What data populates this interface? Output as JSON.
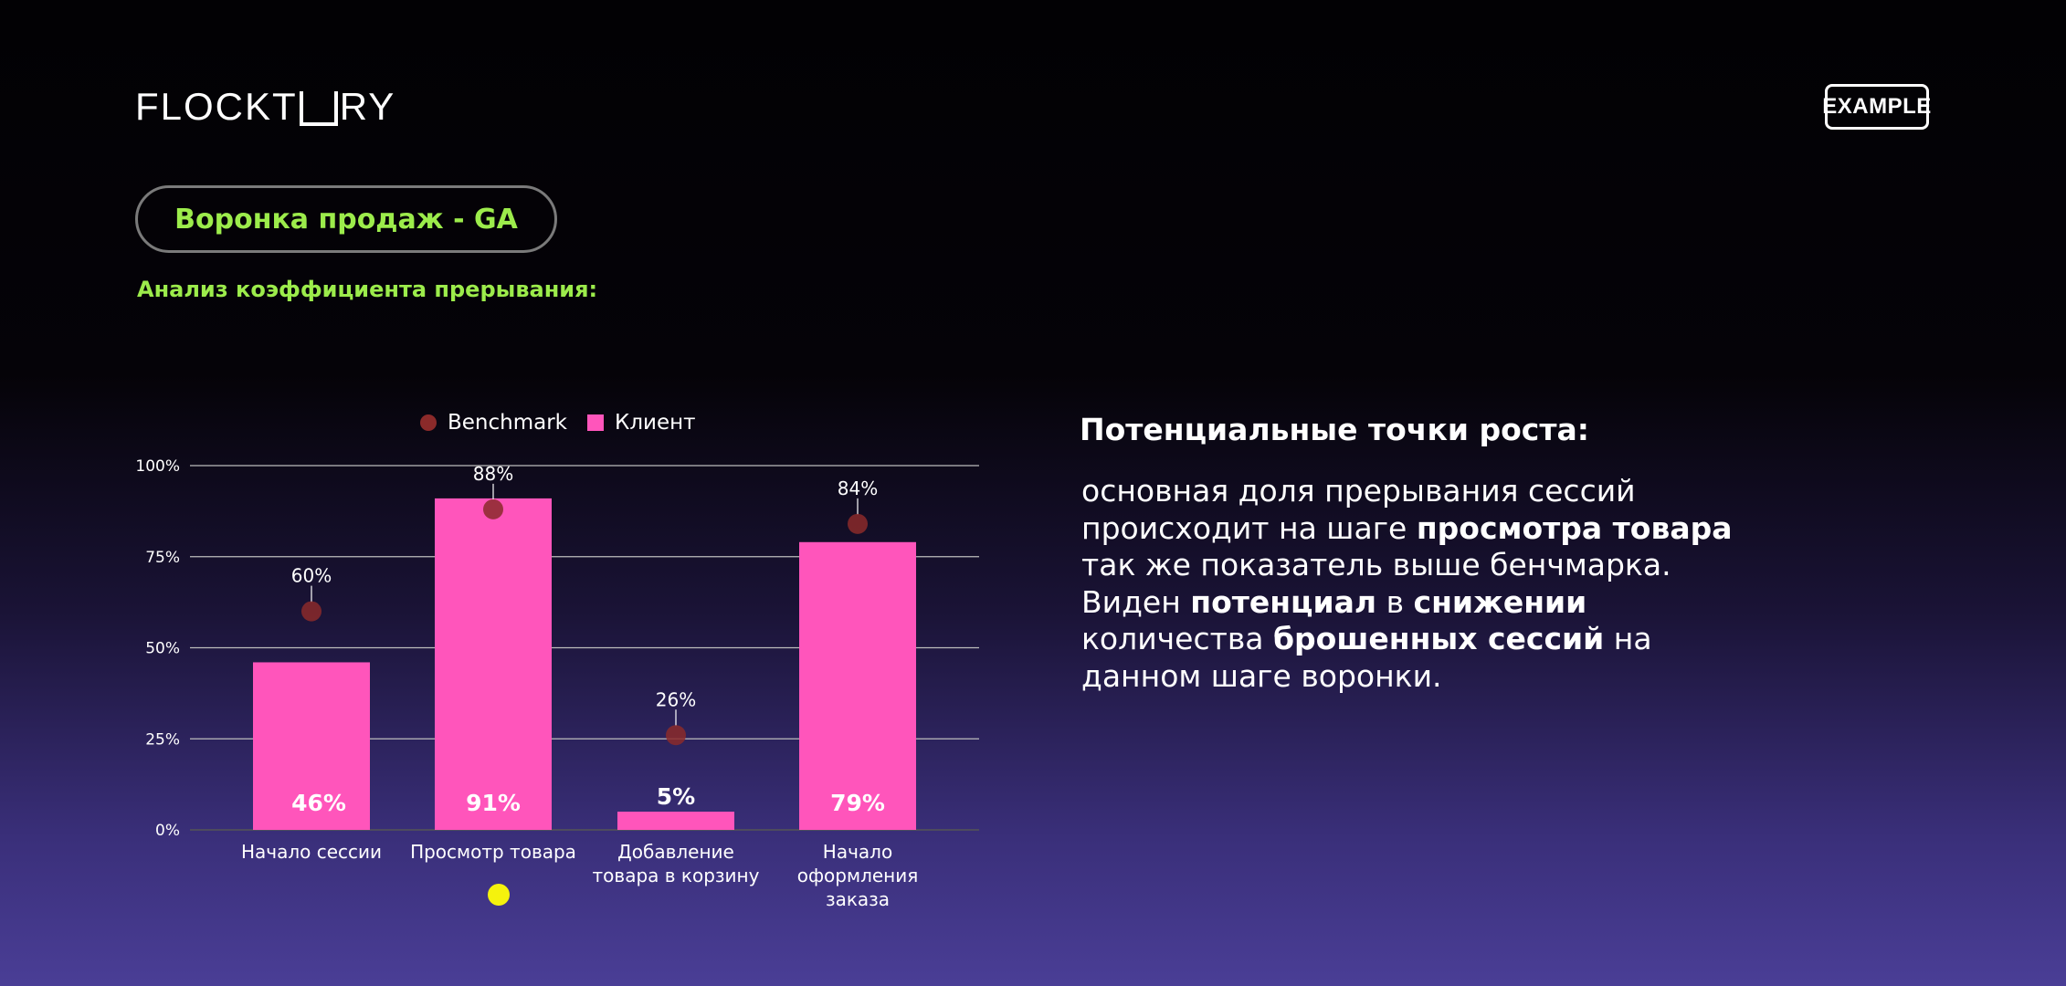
{
  "brand": {
    "logo_text_left": "FLOCKT",
    "logo_text_right": "RY",
    "badge": "EXAMPLE"
  },
  "header": {
    "title": "Воронка продаж - GA",
    "subtitle": "Анализ коэффициента прерывания:"
  },
  "insight": {
    "heading": "Потенциальные точки роста:",
    "body_parts": [
      {
        "text": "основная доля прерывания сессий происходит на шаге ",
        "bold": false
      },
      {
        "text": "просмотра товара",
        "bold": true
      },
      {
        "text": " так же показатель выше бенчмарка. Виден ",
        "bold": false
      },
      {
        "text": "потенциал",
        "bold": true
      },
      {
        "text": " в ",
        "bold": false
      },
      {
        "text": "снижении",
        "bold": true
      },
      {
        "text": " количества ",
        "bold": false
      },
      {
        "text": "брошенных сессий",
        "bold": true
      },
      {
        "text": " на данном шаге воронки.",
        "bold": false
      }
    ]
  },
  "colors": {
    "accent_green": "#9cec4b",
    "bar_pink": "#ff55bb",
    "benchmark_red": "#8b2a2a",
    "highlight_yellow": "#f5f20d"
  },
  "chart_data": {
    "type": "bar",
    "categories": [
      [
        "Начало сессии"
      ],
      [
        "Просмотр товара"
      ],
      [
        "Добавление",
        "товара в корзину"
      ],
      [
        "Начало",
        "оформления",
        "заказа"
      ]
    ],
    "series": [
      {
        "name": "Клиент",
        "kind": "bar",
        "values": [
          46,
          91,
          5,
          79
        ],
        "labels": [
          "46%",
          "91%",
          "5%",
          "79%"
        ]
      },
      {
        "name": "Benchmark",
        "kind": "point",
        "values": [
          60,
          88,
          26,
          84
        ],
        "labels": [
          "60%",
          "88%",
          "26%",
          "84%"
        ]
      }
    ],
    "y_ticks": [
      "0%",
      "25%",
      "50%",
      "75%",
      "100%"
    ],
    "ylim": [
      0,
      100
    ],
    "grid": true,
    "legend": "top-center",
    "highlight_category_index": 1
  }
}
